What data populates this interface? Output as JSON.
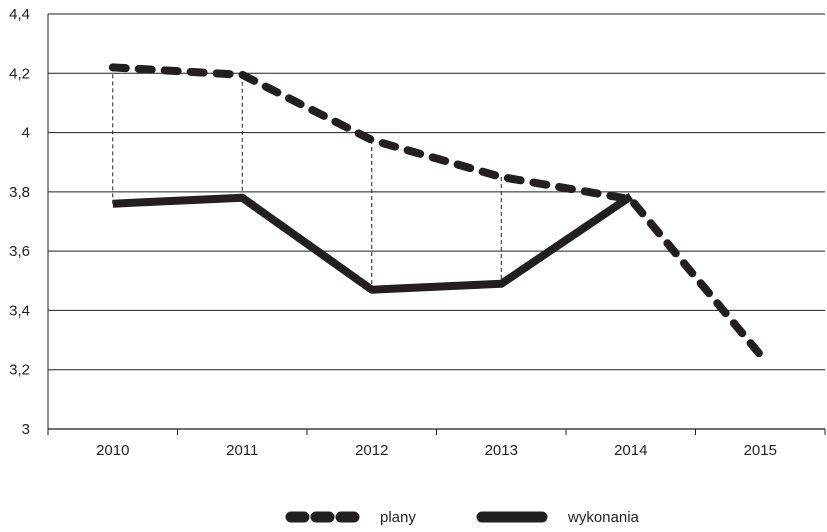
{
  "chart_data": {
    "type": "line",
    "title": "",
    "xlabel": "",
    "ylabel": "",
    "x": [
      "2010",
      "2011",
      "2012",
      "2013",
      "2014",
      "2015"
    ],
    "ylim": [
      3,
      4.4
    ],
    "yticks": [
      3,
      3.2,
      3.4,
      3.6,
      3.8,
      4,
      4.2,
      4.4
    ],
    "ytick_labels": [
      "3",
      "3,2",
      "3,4",
      "3,6",
      "3,8",
      "4",
      "4,2",
      "4,4"
    ],
    "grid": "horizontal",
    "legend_position": "bottom",
    "series": [
      {
        "name": "plany",
        "style": "dashed",
        "color": "#231f20",
        "values": [
          4.22,
          4.195,
          3.975,
          3.85,
          3.775,
          3.25
        ]
      },
      {
        "name": "wykonania",
        "style": "solid",
        "color": "#231f20",
        "values": [
          3.76,
          3.78,
          3.47,
          3.49,
          3.785,
          null
        ]
      }
    ],
    "drop_lines": "dashed vertical connectors between plany and wykonania for 2010–2013"
  }
}
